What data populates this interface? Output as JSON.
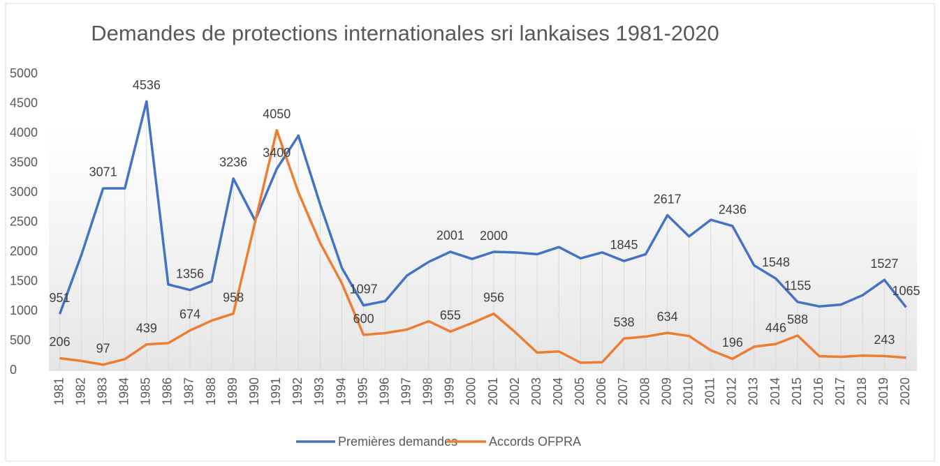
{
  "chart_data": {
    "type": "line",
    "title": "Demandes de protections internationales sri lankaises 1981-2020",
    "categories": [
      "1981",
      "1982",
      "1983",
      "1984",
      "1985",
      "1986",
      "1987",
      "1988",
      "1989",
      "1990",
      "1991",
      "1992",
      "1993",
      "1994",
      "1995",
      "1996",
      "1997",
      "1998",
      "1999",
      "2000",
      "2001",
      "2002",
      "2003",
      "2004",
      "2005",
      "2006",
      "2007",
      "2008",
      "2009",
      "2010",
      "2011",
      "2012",
      "2013",
      "2014",
      "2015",
      "2016",
      "2017",
      "2018",
      "2019",
      "2020"
    ],
    "series": [
      {
        "name": "Premières demandes",
        "color": "#4472c4",
        "values": [
          951,
          1950,
          3071,
          3070,
          4536,
          1450,
          1356,
          1500,
          3236,
          2530,
          3400,
          3960,
          2800,
          1730,
          1097,
          1170,
          1600,
          1830,
          2001,
          1880,
          2000,
          1990,
          1960,
          2080,
          1890,
          1990,
          1845,
          1960,
          2617,
          2260,
          2540,
          2436,
          1770,
          1548,
          1155,
          1080,
          1110,
          1270,
          1527,
          1065
        ],
        "value_labels": [
          "951",
          null,
          "3071",
          null,
          "4536",
          null,
          "1356",
          null,
          "3236",
          null,
          "3400",
          null,
          null,
          null,
          "1097",
          null,
          null,
          null,
          "2001",
          null,
          "2000",
          null,
          null,
          null,
          null,
          null,
          "1845",
          null,
          "2617",
          null,
          null,
          "2436",
          null,
          "1548",
          "1155",
          null,
          null,
          null,
          "1527",
          "1065"
        ]
      },
      {
        "name": "Accords OFPRA",
        "color": "#ed7d31",
        "values": [
          206,
          160,
          97,
          190,
          439,
          460,
          674,
          840,
          958,
          2500,
          4050,
          3000,
          2150,
          1470,
          600,
          630,
          690,
          830,
          655,
          800,
          956,
          640,
          300,
          320,
          130,
          140,
          538,
          570,
          634,
          580,
          340,
          196,
          400,
          446,
          588,
          240,
          230,
          250,
          243,
          215
        ],
        "value_labels": [
          "206",
          null,
          "97",
          null,
          "439",
          null,
          "674",
          null,
          "958",
          null,
          "4050",
          null,
          null,
          null,
          "600",
          null,
          null,
          null,
          "655",
          null,
          "956",
          null,
          null,
          null,
          null,
          null,
          "538",
          null,
          "634",
          null,
          null,
          "196",
          null,
          "446",
          "588",
          null,
          null,
          null,
          "243",
          null
        ]
      }
    ],
    "ylim": [
      0,
      5000
    ],
    "yticks": [
      0,
      500,
      1000,
      1500,
      2000,
      2500,
      3000,
      3500,
      4000,
      4500,
      5000
    ],
    "legend": "bottom"
  }
}
